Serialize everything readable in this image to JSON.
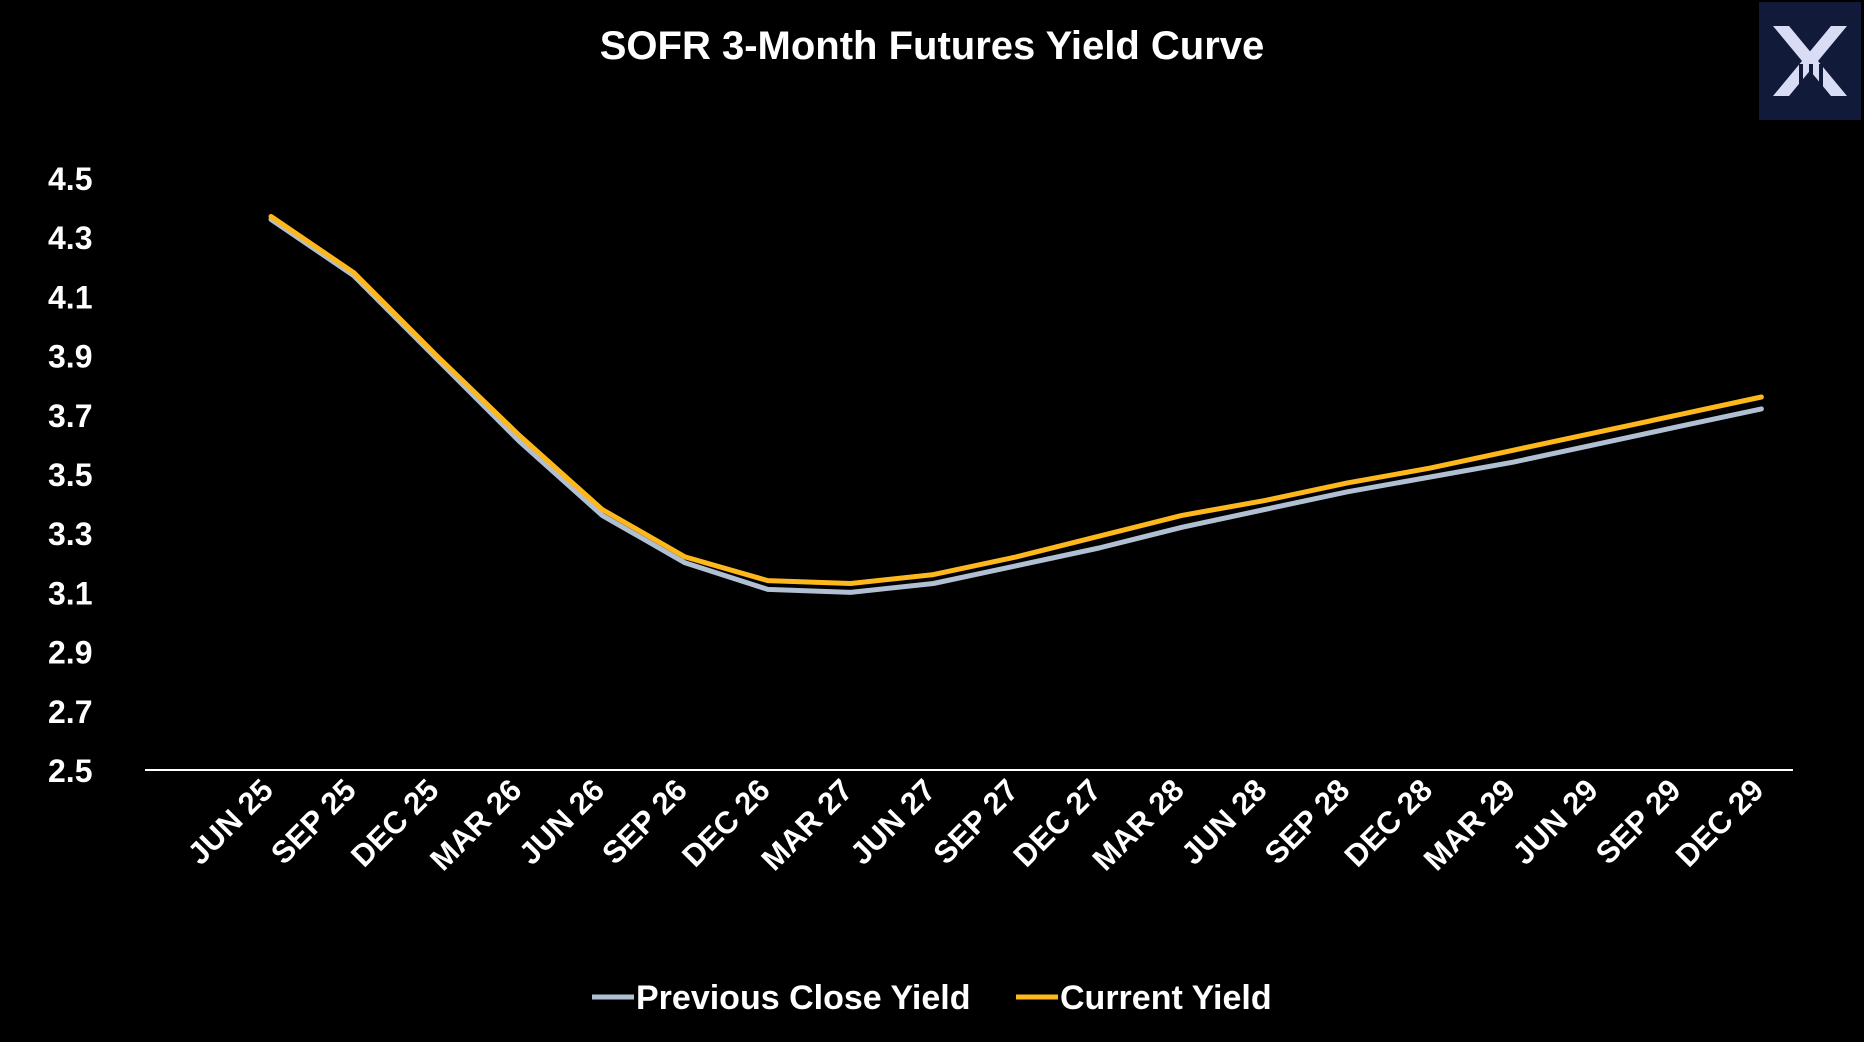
{
  "colors": {
    "background": "#000000",
    "text": "#ffffff",
    "baseline": "#ffffff",
    "previous": "#b0bfd2",
    "current": "#ffb81c",
    "logo_bg": "#111a38",
    "logo_mark": "#d8dcf5"
  },
  "logo": {
    "icon": "x-brand-logo-icon"
  },
  "chart_data": {
    "type": "line",
    "title": "SOFR 3-Month Futures Yield Curve",
    "xlabel": "",
    "ylabel": "",
    "categories": [
      "JUN 25",
      "SEP 25",
      "DEC 25",
      "MAR 26",
      "JUN 26",
      "SEP 26",
      "DEC 26",
      "MAR 27",
      "JUN 27",
      "SEP 27",
      "DEC 27",
      "MAR 28",
      "JUN 28",
      "SEP 28",
      "DEC 28",
      "MAR 29",
      "JUN 29",
      "SEP 29",
      "DEC 29"
    ],
    "yticks": [
      "4.5",
      "4.3",
      "4.1",
      "3.9",
      "3.7",
      "3.5",
      "3.3",
      "3.1",
      "2.9",
      "2.7",
      "2.5"
    ],
    "ylim": [
      2.5,
      4.5
    ],
    "grid": false,
    "legend_position": "bottom",
    "series": [
      {
        "name": "Previous Close Yield",
        "color": "#b0bfd2",
        "values": [
          4.36,
          4.17,
          3.89,
          3.61,
          3.36,
          3.2,
          3.11,
          3.1,
          3.13,
          3.19,
          3.25,
          3.32,
          3.38,
          3.44,
          3.49,
          3.54,
          3.6,
          3.66,
          3.72
        ]
      },
      {
        "name": "Current Yield",
        "color": "#ffb81c",
        "values": [
          4.37,
          4.18,
          3.9,
          3.63,
          3.38,
          3.22,
          3.14,
          3.13,
          3.16,
          3.22,
          3.29,
          3.36,
          3.41,
          3.47,
          3.52,
          3.58,
          3.64,
          3.7,
          3.76
        ]
      }
    ]
  }
}
